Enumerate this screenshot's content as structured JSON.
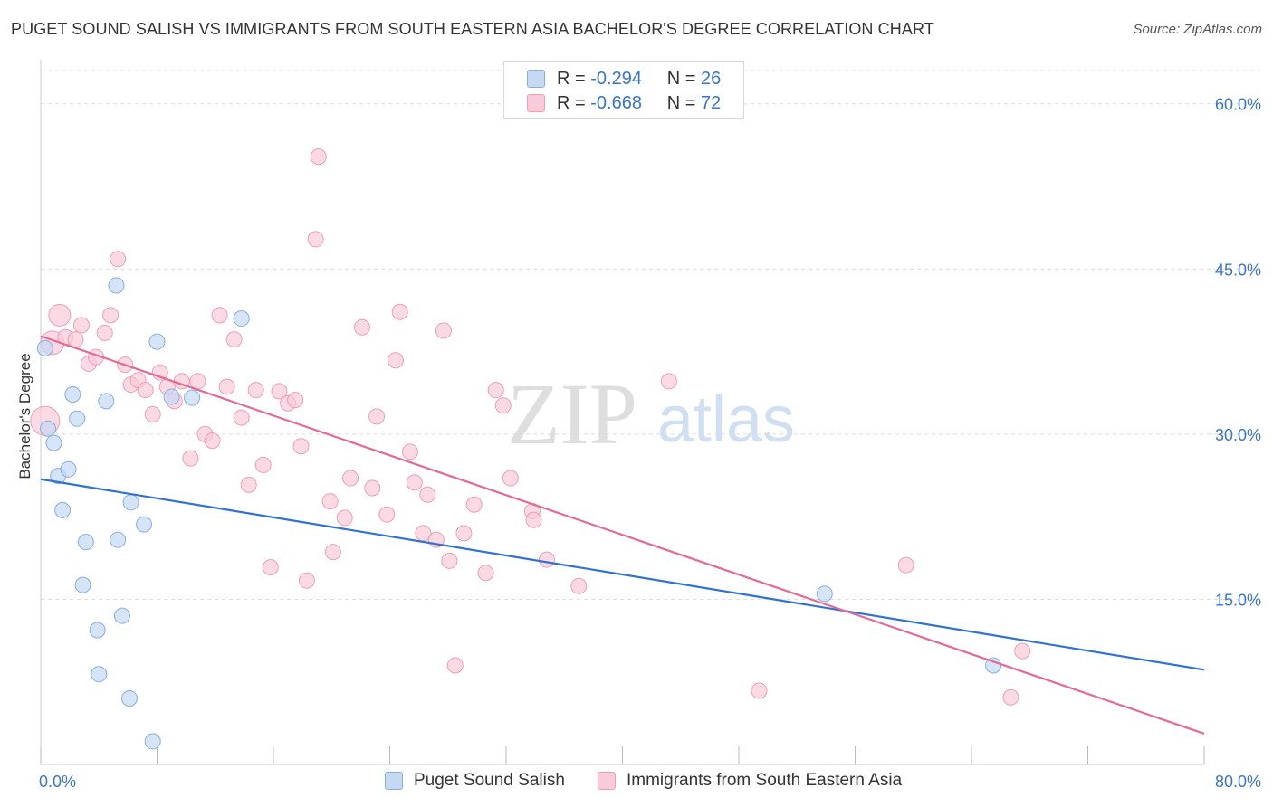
{
  "title": "PUGET SOUND SALISH VS IMMIGRANTS FROM SOUTH EASTERN ASIA BACHELOR'S DEGREE CORRELATION CHART",
  "source": "Source: ZipAtlas.com",
  "watermark": {
    "zip": "ZIP",
    "atlas": "atlas"
  },
  "colors": {
    "blue_fill": "#c5d9f3",
    "blue_stroke": "#88aee0",
    "blue_line": "#2f72d1",
    "pink_fill": "#f9cbd8",
    "pink_stroke": "#ee9fb6",
    "pink_line": "#e36a95",
    "value_text": "#3a76c7",
    "grid": "#dcdcdc"
  },
  "legend": {
    "series": [
      {
        "r_label": "R =",
        "r_value": "-0.294",
        "n_label": "N =",
        "n_value": "26"
      },
      {
        "r_label": "R =",
        "r_value": "-0.668",
        "n_label": "N =",
        "n_value": "72"
      }
    ]
  },
  "chart_data": {
    "type": "scatter",
    "title": "PUGET SOUND SALISH VS IMMIGRANTS FROM SOUTH EASTERN ASIA BACHELOR'S DEGREE CORRELATION CHART",
    "xlabel": "",
    "ylabel": "Bachelor's Degree",
    "xlim": [
      0,
      80
    ],
    "ylim": [
      0,
      64
    ],
    "x_tick_labels": [
      "0.0%",
      "80.0%"
    ],
    "y_ticks": [
      15,
      30,
      45,
      60
    ],
    "y_tick_labels": [
      "15.0%",
      "30.0%",
      "45.0%",
      "60.0%"
    ],
    "grid": true,
    "legend_position": "top-center",
    "series": [
      {
        "name": "Puget Sound Salish",
        "color": "blue",
        "points": [
          {
            "x": 0.3,
            "y": 37.8
          },
          {
            "x": 0.5,
            "y": 30.5
          },
          {
            "x": 0.9,
            "y": 29.2
          },
          {
            "x": 1.2,
            "y": 26.2
          },
          {
            "x": 1.5,
            "y": 23.1
          },
          {
            "x": 1.9,
            "y": 26.8
          },
          {
            "x": 2.2,
            "y": 33.6
          },
          {
            "x": 2.5,
            "y": 31.4
          },
          {
            "x": 2.9,
            "y": 16.3
          },
          {
            "x": 3.1,
            "y": 20.2
          },
          {
            "x": 3.9,
            "y": 12.2
          },
          {
            "x": 4.0,
            "y": 8.2
          },
          {
            "x": 4.5,
            "y": 33.0
          },
          {
            "x": 5.2,
            "y": 43.5
          },
          {
            "x": 5.3,
            "y": 20.4
          },
          {
            "x": 5.6,
            "y": 13.5
          },
          {
            "x": 6.1,
            "y": 6.0
          },
          {
            "x": 6.2,
            "y": 23.8
          },
          {
            "x": 7.1,
            "y": 21.8
          },
          {
            "x": 7.7,
            "y": 2.1
          },
          {
            "x": 8.0,
            "y": 38.4
          },
          {
            "x": 9.0,
            "y": 33.4
          },
          {
            "x": 10.4,
            "y": 33.3
          },
          {
            "x": 13.8,
            "y": 40.5
          },
          {
            "x": 53.9,
            "y": 15.5
          },
          {
            "x": 65.5,
            "y": 9.0
          }
        ],
        "trend": {
          "x": [
            0,
            80
          ],
          "y": [
            25.9,
            8.6
          ]
        }
      },
      {
        "name": "Immigrants from South Eastern Asia",
        "color": "pink",
        "points": [
          {
            "x": 0.3,
            "y": 31.2
          },
          {
            "x": 0.8,
            "y": 38.3
          },
          {
            "x": 1.3,
            "y": 40.8
          },
          {
            "x": 1.7,
            "y": 38.8
          },
          {
            "x": 2.4,
            "y": 38.6
          },
          {
            "x": 2.8,
            "y": 39.9
          },
          {
            "x": 3.3,
            "y": 36.4
          },
          {
            "x": 3.8,
            "y": 37.0
          },
          {
            "x": 4.4,
            "y": 39.2
          },
          {
            "x": 4.8,
            "y": 40.8
          },
          {
            "x": 5.3,
            "y": 45.9
          },
          {
            "x": 5.8,
            "y": 36.3
          },
          {
            "x": 6.2,
            "y": 34.5
          },
          {
            "x": 6.7,
            "y": 34.9
          },
          {
            "x": 7.2,
            "y": 34.0
          },
          {
            "x": 7.7,
            "y": 31.8
          },
          {
            "x": 8.2,
            "y": 35.6
          },
          {
            "x": 8.7,
            "y": 34.3
          },
          {
            "x": 9.2,
            "y": 33.0
          },
          {
            "x": 9.7,
            "y": 34.8
          },
          {
            "x": 10.3,
            "y": 27.8
          },
          {
            "x": 10.8,
            "y": 34.8
          },
          {
            "x": 11.3,
            "y": 30.0
          },
          {
            "x": 11.8,
            "y": 29.4
          },
          {
            "x": 12.3,
            "y": 40.8
          },
          {
            "x": 12.8,
            "y": 34.3
          },
          {
            "x": 13.3,
            "y": 38.6
          },
          {
            "x": 13.8,
            "y": 31.5
          },
          {
            "x": 14.3,
            "y": 25.4
          },
          {
            "x": 14.8,
            "y": 34.0
          },
          {
            "x": 15.3,
            "y": 27.2
          },
          {
            "x": 15.8,
            "y": 17.9
          },
          {
            "x": 16.4,
            "y": 33.9
          },
          {
            "x": 17.0,
            "y": 32.8
          },
          {
            "x": 17.5,
            "y": 33.1
          },
          {
            "x": 17.9,
            "y": 28.9
          },
          {
            "x": 18.3,
            "y": 16.7
          },
          {
            "x": 18.9,
            "y": 47.7
          },
          {
            "x": 19.1,
            "y": 55.2
          },
          {
            "x": 19.9,
            "y": 23.9
          },
          {
            "x": 20.1,
            "y": 19.3
          },
          {
            "x": 20.9,
            "y": 22.4
          },
          {
            "x": 21.3,
            "y": 26.0
          },
          {
            "x": 22.1,
            "y": 39.7
          },
          {
            "x": 22.8,
            "y": 25.1
          },
          {
            "x": 23.1,
            "y": 31.6
          },
          {
            "x": 23.8,
            "y": 22.7
          },
          {
            "x": 24.4,
            "y": 36.7
          },
          {
            "x": 24.7,
            "y": 41.1
          },
          {
            "x": 25.4,
            "y": 28.4
          },
          {
            "x": 25.7,
            "y": 25.6
          },
          {
            "x": 26.3,
            "y": 21.0
          },
          {
            "x": 26.6,
            "y": 24.5
          },
          {
            "x": 27.2,
            "y": 20.4
          },
          {
            "x": 27.7,
            "y": 39.4
          },
          {
            "x": 28.1,
            "y": 18.5
          },
          {
            "x": 28.5,
            "y": 9.0
          },
          {
            "x": 29.1,
            "y": 21.0
          },
          {
            "x": 29.8,
            "y": 23.6
          },
          {
            "x": 30.6,
            "y": 17.4
          },
          {
            "x": 31.3,
            "y": 34.0
          },
          {
            "x": 31.8,
            "y": 32.6
          },
          {
            "x": 32.3,
            "y": 26.0
          },
          {
            "x": 33.8,
            "y": 23.0
          },
          {
            "x": 33.9,
            "y": 22.2
          },
          {
            "x": 34.8,
            "y": 18.6
          },
          {
            "x": 37.0,
            "y": 16.2
          },
          {
            "x": 43.2,
            "y": 34.8
          },
          {
            "x": 49.4,
            "y": 6.7
          },
          {
            "x": 59.5,
            "y": 18.1
          },
          {
            "x": 66.7,
            "y": 6.1
          },
          {
            "x": 67.5,
            "y": 10.3
          }
        ],
        "trend": {
          "x": [
            0,
            80
          ],
          "y": [
            38.9,
            2.8
          ]
        }
      }
    ]
  }
}
